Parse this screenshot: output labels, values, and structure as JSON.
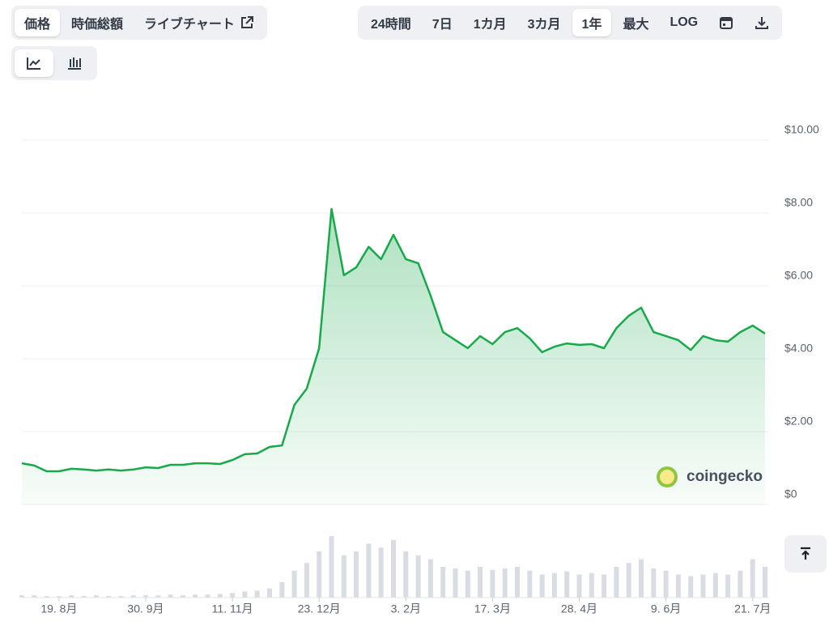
{
  "toolbar": {
    "left": [
      "価格",
      "時価総額",
      "ライブチャート"
    ],
    "right": [
      "24時間",
      "7日",
      "1カ月",
      "3カ月",
      "1年",
      "最大",
      "LOG"
    ]
  },
  "watermark": "coingecko",
  "chart_data": {
    "type": "line",
    "categories": [
      null,
      null,
      null,
      "19. 8月",
      null,
      null,
      null,
      null,
      null,
      null,
      "30. 9月",
      null,
      null,
      null,
      null,
      null,
      null,
      "11. 11月",
      null,
      null,
      null,
      null,
      null,
      null,
      "23. 12月",
      null,
      null,
      null,
      null,
      null,
      null,
      "3. 2月",
      null,
      null,
      null,
      null,
      null,
      null,
      "17. 3月",
      null,
      null,
      null,
      null,
      null,
      null,
      "28. 4月",
      null,
      null,
      null,
      null,
      null,
      null,
      "9. 6月",
      null,
      null,
      null,
      null,
      null,
      null,
      "21. 7月",
      null
    ],
    "series": [
      {
        "color": "#18a94b",
        "values": [
          1.13,
          1.07,
          0.91,
          0.91,
          0.98,
          0.96,
          0.93,
          0.96,
          0.93,
          0.96,
          1.02,
          1.0,
          1.09,
          1.09,
          1.13,
          1.13,
          1.11,
          1.22,
          1.38,
          1.4,
          1.58,
          1.62,
          2.73,
          3.18,
          4.29,
          8.11,
          6.29,
          6.51,
          7.07,
          6.73,
          7.4,
          6.73,
          6.62,
          5.73,
          4.73,
          4.51,
          4.29,
          4.62,
          4.4,
          4.73,
          4.84,
          4.56,
          4.18,
          4.33,
          4.42,
          4.38,
          4.4,
          4.29,
          4.84,
          5.18,
          5.4,
          4.73,
          4.62,
          4.51,
          4.24,
          4.62,
          4.51,
          4.47,
          4.73,
          4.91,
          4.69
        ]
      }
    ],
    "volume": {
      "color": "#d9dde3",
      "values": [
        3,
        3,
        2,
        2,
        3,
        2,
        3,
        2,
        2,
        3,
        3,
        3,
        4,
        3,
        4,
        4,
        5,
        6,
        8,
        9,
        12,
        20,
        35,
        45,
        60,
        80,
        55,
        60,
        70,
        65,
        75,
        60,
        55,
        50,
        40,
        38,
        35,
        40,
        36,
        38,
        40,
        35,
        30,
        32,
        34,
        30,
        32,
        30,
        40,
        45,
        50,
        38,
        35,
        30,
        28,
        30,
        32,
        30,
        35,
        50,
        40
      ]
    },
    "vlim": [
      0,
      100
    ],
    "ylim": [
      0,
      10
    ],
    "yticks": [
      {
        "value": 0,
        "label": "$0"
      },
      {
        "value": 2,
        "label": "$2.00"
      },
      {
        "value": 4,
        "label": "$4.00"
      },
      {
        "value": 6,
        "label": "$6.00"
      },
      {
        "value": 8,
        "label": "$8.00"
      },
      {
        "value": 10,
        "label": "$10.00"
      }
    ],
    "grid": true
  }
}
